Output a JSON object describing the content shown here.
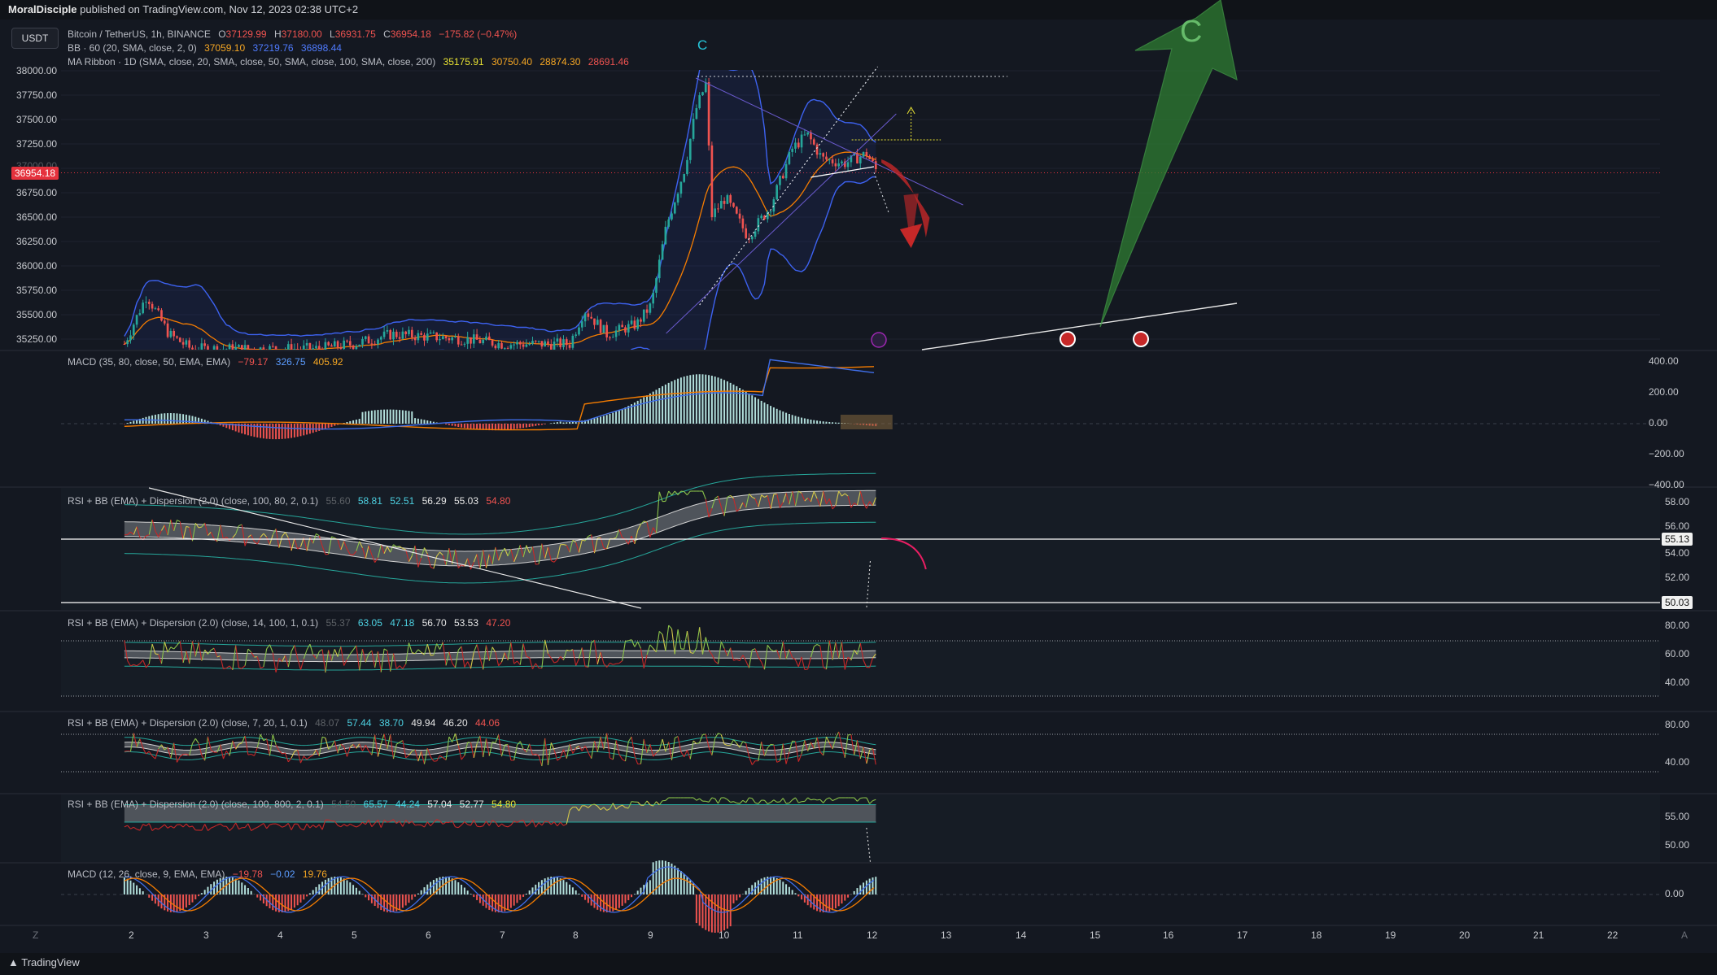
{
  "header": {
    "publisher": "MoralDisciple",
    "published_text": "published on TradingView.com, Nov 12, 2023 02:38 UTC+2"
  },
  "currency_button": "USDT",
  "main_legend": {
    "symbol": "Bitcoin / TetherUS, 1h, BINANCE",
    "ohlc": [
      {
        "k": "O",
        "v": "37129.99"
      },
      {
        "k": "H",
        "v": "37180.00"
      },
      {
        "k": "L",
        "v": "36931.75"
      },
      {
        "k": "C",
        "v": "36954.18"
      }
    ],
    "change": "−175.82 (−0.47%)",
    "bb": {
      "label": "BB · 60 (20, SMA, close, 2, 0)",
      "v1": "37059.10",
      "v2": "37219.76",
      "v3": "36898.44"
    },
    "ma": {
      "label": "MA Ribbon · 1D (SMA, close, 20, SMA, close, 50, SMA, close, 100, SMA, close, 200)",
      "v1": "35175.91",
      "v2": "30750.40",
      "v3": "28874.30",
      "v4": "28691.46"
    }
  },
  "wave_labels": {
    "small_c": "C",
    "big_c": "C"
  },
  "price_axis": [
    "38000.00",
    "37750.00",
    "37500.00",
    "37250.00",
    "37000.00",
    "36750.00",
    "36500.00",
    "36250.00",
    "36000.00",
    "35750.00",
    "35500.00",
    "35250.00"
  ],
  "current_price": "36954.18",
  "macd1": {
    "label": "MACD (35, 80, close, 50, EMA, EMA)",
    "v1": "−79.17",
    "v2": "326.75",
    "v3": "405.92",
    "axis": [
      "400.00",
      "200.00",
      "0.00",
      "−200.00",
      "−400.00"
    ]
  },
  "rsi1": {
    "label": "RSI + BB (EMA) + Dispersion (2.0) (close, 100, 80, 2, 0.1)",
    "v0": "55.60",
    "v1": "58.81",
    "v2": "52.51",
    "v3": "56.29",
    "v4": "55.03",
    "v5": "54.80",
    "axis": [
      "58.00",
      "56.00",
      "54.00",
      "52.00"
    ],
    "tag_a": "55.13",
    "tag_b": "50.03"
  },
  "rsi2": {
    "label": "RSI + BB (EMA) + Dispersion (2.0) (close, 14, 100, 1, 0.1)",
    "v0": "55.37",
    "v1": "63.05",
    "v2": "47.18",
    "v3": "56.70",
    "v4": "53.53",
    "v5": "47.20",
    "axis": [
      "80.00",
      "60.00",
      "40.00"
    ]
  },
  "rsi3": {
    "label": "RSI + BB (EMA) + Dispersion (2.0) (close, 7, 20, 1, 0.1)",
    "v0": "48.07",
    "v1": "57.44",
    "v2": "38.70",
    "v3": "49.94",
    "v4": "46.20",
    "v5": "44.06",
    "axis": [
      "80.00",
      "40.00"
    ]
  },
  "rsi4": {
    "label": "RSI + BB (EMA) + Dispersion (2.0) (close, 100, 800, 2, 0.1)",
    "v0": "54.50",
    "v1": "65.57",
    "v2": "44.24",
    "v3": "57.04",
    "v4": "52.77",
    "v5": "54.80",
    "axis": [
      "55.00",
      "50.00"
    ]
  },
  "macd2": {
    "label": "MACD (12, 26, close, 9, EMA, EMA)",
    "v1": "−19.78",
    "v2": "−0.02",
    "v3": "19.76",
    "axis": [
      "0.00"
    ]
  },
  "time_axis": [
    "2",
    "3",
    "4",
    "5",
    "6",
    "7",
    "8",
    "9",
    "10",
    "11",
    "12",
    "13",
    "14",
    "15",
    "16",
    "17",
    "18",
    "19",
    "20",
    "21",
    "22"
  ],
  "footer": {
    "brand": "TradingView"
  },
  "colors": {
    "background": "#141821",
    "bull": "#26a69a",
    "bear": "#ef5350",
    "bb": "#3d62f0",
    "ma": "#f57c00",
    "forecast_up": "#2e7d32",
    "forecast_down": "#c62828"
  },
  "chart_data": {
    "type": "candlestick",
    "title": "Bitcoin / TetherUS, 1h, BINANCE",
    "x_labels": [
      "2",
      "3",
      "4",
      "5",
      "6",
      "7",
      "8",
      "9",
      "10",
      "11",
      "12",
      "13",
      "14",
      "15",
      "16",
      "17",
      "18",
      "19",
      "20",
      "21",
      "22"
    ],
    "ylim": [
      35150,
      38150
    ],
    "last_close": 36954.18,
    "path": [
      [
        1.9,
        35200
      ],
      [
        2.2,
        35700
      ],
      [
        2.5,
        35300
      ],
      [
        2.8,
        35150
      ],
      [
        3.5,
        35150
      ],
      [
        4.5,
        35150
      ],
      [
        5.0,
        35200
      ],
      [
        5.5,
        35300
      ],
      [
        6.5,
        35250
      ],
      [
        7.0,
        35200
      ],
      [
        7.9,
        35200
      ],
      [
        8.1,
        35550
      ],
      [
        8.4,
        35300
      ],
      [
        8.8,
        35400
      ],
      [
        9.0,
        35600
      ],
      [
        9.2,
        36400
      ],
      [
        9.45,
        37000
      ],
      [
        9.6,
        37600
      ],
      [
        9.75,
        37900
      ],
      [
        9.8,
        36500
      ],
      [
        10.0,
        36700
      ],
      [
        10.3,
        36300
      ],
      [
        10.6,
        36600
      ],
      [
        10.9,
        37200
      ],
      [
        11.1,
        37350
      ],
      [
        11.3,
        37100
      ],
      [
        11.6,
        37050
      ],
      [
        11.9,
        37150
      ],
      [
        12.05,
        36954
      ]
    ],
    "forecast_up_target": 38250,
    "forecast_down_target": 36150
  }
}
